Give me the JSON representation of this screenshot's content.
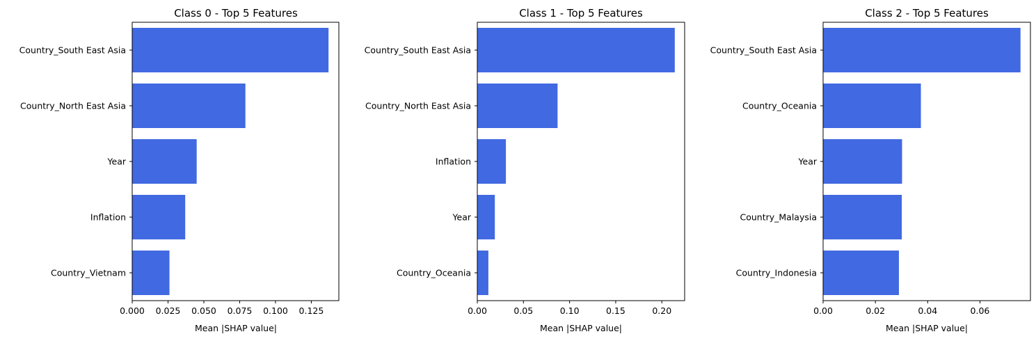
{
  "chart_data": [
    {
      "type": "bar",
      "orientation": "horizontal",
      "title": "Class 0 - Top 5 Features",
      "xlabel": "Mean |SHAP value|",
      "ylabel": "",
      "categories": [
        "Country_South East Asia",
        "Country_North East Asia",
        "Year",
        "Inflation",
        "Country_Vietnam"
      ],
      "values": [
        0.137,
        0.079,
        0.045,
        0.037,
        0.026
      ],
      "xlim": [
        0,
        0.1442
      ],
      "xticks": [
        0.0,
        0.025,
        0.05,
        0.075,
        0.1,
        0.125
      ],
      "xtick_labels": [
        "0.000",
        "0.025",
        "0.050",
        "0.075",
        "0.100",
        "0.125"
      ],
      "grid": false,
      "color": "#4169E1"
    },
    {
      "type": "bar",
      "orientation": "horizontal",
      "title": "Class 1 - Top 5 Features",
      "xlabel": "Mean |SHAP value|",
      "ylabel": "",
      "categories": [
        "Country_South East Asia",
        "Country_North East Asia",
        "Inflation",
        "Year",
        "Country_Oceania"
      ],
      "values": [
        0.214,
        0.087,
        0.031,
        0.019,
        0.012
      ],
      "xlim": [
        0,
        0.2247
      ],
      "xticks": [
        0.0,
        0.05,
        0.1,
        0.15,
        0.2
      ],
      "xtick_labels": [
        "0.00",
        "0.05",
        "0.10",
        "0.15",
        "0.20"
      ],
      "grid": false,
      "color": "#4169E1"
    },
    {
      "type": "bar",
      "orientation": "horizontal",
      "title": "Class 2 - Top 5 Features",
      "xlabel": "Mean |SHAP value|",
      "ylabel": "",
      "categories": [
        "Country_South East Asia",
        "Country_Oceania",
        "Year",
        "Country_Malaysia",
        "Country_Indonesia"
      ],
      "values": [
        0.0755,
        0.0374,
        0.0302,
        0.0301,
        0.029
      ],
      "xlim": [
        0,
        0.0793
      ],
      "xticks": [
        0.0,
        0.02,
        0.04,
        0.06
      ],
      "xtick_labels": [
        "0.00",
        "0.02",
        "0.04",
        "0.06"
      ],
      "grid": false,
      "color": "#4169E1"
    }
  ]
}
